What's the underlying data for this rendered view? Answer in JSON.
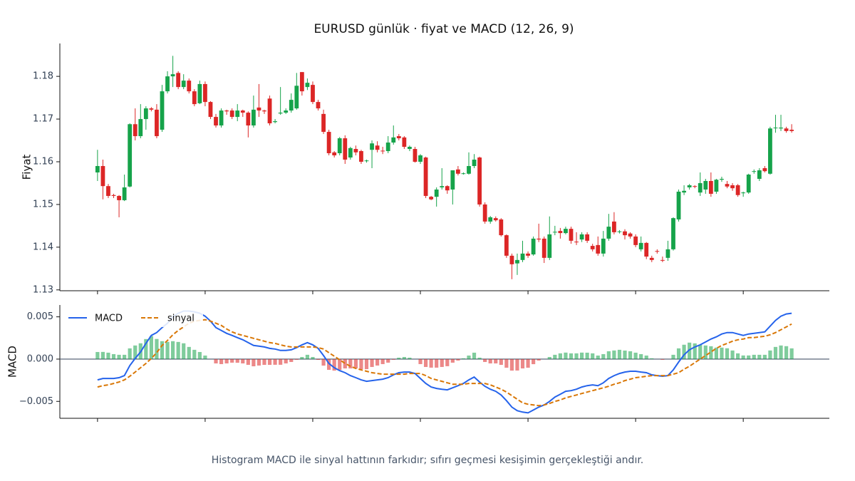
{
  "chart_data": [
    {
      "type": "candlestick",
      "title": "EURUSD günlük · fiyat ve MACD (12, 26, 9)",
      "ylabel": "Fiyat",
      "xlim": [
        -7,
        136
      ],
      "ylim": [
        1.1298,
        1.1877
      ],
      "yticks": [
        1.13,
        1.14,
        1.15,
        1.16,
        1.17,
        1.18
      ],
      "up_color": "#16a34a",
      "down_color": "#dc2626",
      "open": [
        1.1575,
        1.159,
        1.1543,
        1.1522,
        1.152,
        1.151,
        1.1542,
        1.1688,
        1.166,
        1.17,
        1.1725,
        1.1722,
        1.1675,
        1.1765,
        1.18,
        1.1808,
        1.1775,
        1.179,
        1.1765,
        1.1737,
        1.1782,
        1.174,
        1.1705,
        1.1685,
        1.172,
        1.172,
        1.1705,
        1.172,
        1.1715,
        1.1685,
        1.1727,
        1.172,
        1.1748,
        1.1693,
        1.1713,
        1.1715,
        1.172,
        1.1725,
        1.181,
        1.1775,
        1.178,
        1.174,
        1.1712,
        1.167,
        1.1622,
        1.162,
        1.1655,
        1.161,
        1.163,
        1.1625,
        1.1602,
        1.1628,
        1.1638,
        1.1626,
        1.1625,
        1.1645,
        1.166,
        1.1657,
        1.163,
        1.163,
        1.16,
        1.161,
        1.1518,
        1.1518,
        1.154,
        1.1543,
        1.1535,
        1.1582,
        1.1572,
        1.1572,
        1.159,
        1.161,
        1.15,
        1.146,
        1.1468,
        1.1465,
        1.1428,
        1.138,
        1.1362,
        1.137,
        1.1385,
        1.1383,
        1.142,
        1.142,
        1.1375,
        1.1435,
        1.1438,
        1.1433,
        1.1443,
        1.1413,
        1.1418,
        1.143,
        1.1403,
        1.1405,
        1.1385,
        1.142,
        1.146,
        1.1436,
        1.1437,
        1.1432,
        1.1425,
        1.1395,
        1.141,
        1.1375,
        1.1391,
        1.137,
        1.1375,
        1.1395,
        1.1465,
        1.1528,
        1.154,
        1.1543,
        1.1528,
        1.1535,
        1.1555,
        1.153,
        1.1558,
        1.1548,
        1.1545,
        1.1545,
        1.1527,
        1.1528,
        1.1577,
        1.156,
        1.1585,
        1.1572,
        1.1679,
        1.1678,
        1.1678,
        1.1675
      ],
      "high": [
        1.1628,
        1.1605,
        1.1548,
        1.1525,
        1.1522,
        1.157,
        1.169,
        1.1725,
        1.1735,
        1.173,
        1.1728,
        1.1735,
        1.178,
        1.1812,
        1.1848,
        1.1812,
        1.1805,
        1.1795,
        1.177,
        1.179,
        1.1788,
        1.1742,
        1.1712,
        1.1725,
        1.1722,
        1.1725,
        1.1735,
        1.1722,
        1.1718,
        1.1755,
        1.1782,
        1.1722,
        1.1755,
        1.17,
        1.1775,
        1.1725,
        1.176,
        1.1808,
        1.181,
        1.1795,
        1.1788,
        1.1745,
        1.1722,
        1.1675,
        1.1625,
        1.1658,
        1.1662,
        1.1635,
        1.1638,
        1.1628,
        1.1605,
        1.165,
        1.1648,
        1.1635,
        1.166,
        1.1685,
        1.1665,
        1.166,
        1.1638,
        1.1635,
        1.1618,
        1.1612,
        1.152,
        1.154,
        1.1585,
        1.1545,
        1.158,
        1.159,
        1.1575,
        1.1622,
        1.1618,
        1.1612,
        1.1505,
        1.1473,
        1.1472,
        1.1468,
        1.143,
        1.1385,
        1.1385,
        1.1415,
        1.139,
        1.1425,
        1.1455,
        1.1425,
        1.1472,
        1.145,
        1.1445,
        1.1448,
        1.1448,
        1.1435,
        1.1435,
        1.1435,
        1.1408,
        1.1425,
        1.1438,
        1.1478,
        1.1482,
        1.144,
        1.1442,
        1.1435,
        1.143,
        1.1425,
        1.1412,
        1.138,
        1.1395,
        1.1378,
        1.1415,
        1.147,
        1.1535,
        1.1545,
        1.1548,
        1.1545,
        1.1575,
        1.156,
        1.1575,
        1.156,
        1.1565,
        1.1555,
        1.155,
        1.1548,
        1.153,
        1.1572,
        1.1582,
        1.1585,
        1.159,
        1.1682,
        1.171,
        1.171,
        1.1682,
        1.1688
      ],
      "low": [
        1.1555,
        1.1512,
        1.1515,
        1.1515,
        1.147,
        1.1508,
        1.154,
        1.165,
        1.1655,
        1.1675,
        1.1718,
        1.1655,
        1.167,
        1.176,
        1.1775,
        1.177,
        1.177,
        1.176,
        1.173,
        1.1735,
        1.173,
        1.17,
        1.168,
        1.168,
        1.171,
        1.17,
        1.1695,
        1.1705,
        1.1657,
        1.168,
        1.1705,
        1.1712,
        1.1685,
        1.169,
        1.171,
        1.1712,
        1.1715,
        1.1722,
        1.1755,
        1.1768,
        1.1735,
        1.172,
        1.1665,
        1.1615,
        1.161,
        1.1615,
        1.1595,
        1.1605,
        1.1615,
        1.1595,
        1.1598,
        1.1585,
        1.1622,
        1.1618,
        1.162,
        1.164,
        1.165,
        1.163,
        1.1625,
        1.1598,
        1.1595,
        1.1515,
        1.151,
        1.1495,
        1.1535,
        1.1525,
        1.15,
        1.1568,
        1.157,
        1.157,
        1.1585,
        1.1495,
        1.1455,
        1.1455,
        1.146,
        1.1425,
        1.1375,
        1.1325,
        1.1335,
        1.1365,
        1.1375,
        1.138,
        1.1412,
        1.1363,
        1.137,
        1.1428,
        1.142,
        1.143,
        1.1408,
        1.1405,
        1.1412,
        1.141,
        1.139,
        1.138,
        1.1378,
        1.1415,
        1.143,
        1.1432,
        1.1418,
        1.142,
        1.14,
        1.139,
        1.1372,
        1.1365,
        1.1385,
        1.1365,
        1.1368,
        1.1392,
        1.146,
        1.1522,
        1.1535,
        1.1538,
        1.152,
        1.1525,
        1.1518,
        1.1525,
        1.1553,
        1.1538,
        1.1532,
        1.1518,
        1.1518,
        1.1525,
        1.1572,
        1.1555,
        1.1575,
        1.157,
        1.1668,
        1.1672,
        1.1668,
        1.1668
      ],
      "close": [
        1.159,
        1.1543,
        1.152,
        1.152,
        1.151,
        1.154,
        1.1688,
        1.166,
        1.17,
        1.1725,
        1.1722,
        1.166,
        1.1765,
        1.18,
        1.1805,
        1.1775,
        1.179,
        1.1765,
        1.1735,
        1.1782,
        1.174,
        1.1705,
        1.1685,
        1.172,
        1.1718,
        1.1705,
        1.172,
        1.1715,
        1.1685,
        1.1722,
        1.172,
        1.1718,
        1.169,
        1.1695,
        1.1715,
        1.172,
        1.1745,
        1.1778,
        1.1765,
        1.1785,
        1.174,
        1.1725,
        1.167,
        1.162,
        1.1615,
        1.1655,
        1.1605,
        1.1632,
        1.1622,
        1.16,
        1.1603,
        1.1643,
        1.1628,
        1.1625,
        1.1645,
        1.1657,
        1.1655,
        1.1635,
        1.1635,
        1.16,
        1.1615,
        1.152,
        1.1512,
        1.1535,
        1.1543,
        1.1533,
        1.158,
        1.1572,
        1.1573,
        1.159,
        1.1605,
        1.15,
        1.146,
        1.147,
        1.1463,
        1.1428,
        1.138,
        1.136,
        1.137,
        1.1385,
        1.138,
        1.142,
        1.1418,
        1.1375,
        1.143,
        1.1436,
        1.1433,
        1.1443,
        1.1415,
        1.1412,
        1.143,
        1.1415,
        1.1395,
        1.1385,
        1.142,
        1.1448,
        1.1435,
        1.1437,
        1.1428,
        1.1425,
        1.1405,
        1.141,
        1.1378,
        1.137,
        1.139,
        1.1369,
        1.1395,
        1.1468,
        1.153,
        1.1532,
        1.1545,
        1.1542,
        1.155,
        1.1555,
        1.1525,
        1.1558,
        1.156,
        1.1542,
        1.1538,
        1.1522,
        1.1528,
        1.157,
        1.1578,
        1.158,
        1.1578,
        1.1678,
        1.168,
        1.168,
        1.1672,
        1.1672
      ]
    },
    {
      "type": "macd",
      "ylabel": "MACD",
      "xlim": [
        -7,
        136
      ],
      "ylim": [
        -0.007,
        0.0064
      ],
      "yticks": [
        {
          "value": -0.005,
          "label": "−0.005"
        },
        {
          "value": 0,
          "label": "0.000"
        },
        {
          "value": 0.005,
          "label": "0.005"
        }
      ],
      "legend": "upper left",
      "histogram": {
        "up_color": "#16a34a",
        "down_color": "#dc2626",
        "values": [
          0.00084,
          0.00085,
          0.00076,
          0.00059,
          0.00051,
          0.00051,
          0.00127,
          0.00161,
          0.00187,
          0.00237,
          0.00272,
          0.00238,
          0.00212,
          0.00204,
          0.00212,
          0.00203,
          0.00187,
          0.00144,
          0.0011,
          0.00084,
          0.00042,
          0,
          -0.00051,
          -0.00059,
          -0.00051,
          -0.00042,
          -0.00043,
          -0.00051,
          -0.00068,
          -0.00085,
          -0.00076,
          -0.00068,
          -0.00068,
          -0.00067,
          -0.00067,
          -0.00051,
          -0.00034,
          -8e-05,
          0.00025,
          0.00051,
          0.00025,
          -9e-05,
          -0.00077,
          -0.00127,
          -0.00136,
          -0.00128,
          -0.0011,
          -0.0011,
          -0.0011,
          -0.00119,
          -0.00119,
          -0.00093,
          -0.00076,
          -0.00059,
          -0.00042,
          -8e-05,
          0.00017,
          0.00025,
          0.00017,
          0,
          -0.00059,
          -0.00093,
          -0.00101,
          -0.00101,
          -0.00093,
          -0.00084,
          -0.00042,
          -0.00017,
          9e-05,
          0.00042,
          0.00076,
          0.00017,
          -0.00034,
          -0.00051,
          -0.00051,
          -0.00068,
          -0.00102,
          -0.00136,
          -0.00135,
          -0.0011,
          -0.00102,
          -0.0006,
          -0.00017,
          0,
          0.00025,
          0.00051,
          0.00068,
          0.00077,
          0.00068,
          0.00068,
          0.00077,
          0.00076,
          0.00068,
          0.00042,
          0.00059,
          0.00093,
          0.00102,
          0.0011,
          0.00101,
          0.00093,
          0.00076,
          0.00059,
          0.00042,
          9e-05,
          0,
          -8e-05,
          0,
          0.00051,
          0.00127,
          0.0017,
          0.00195,
          0.00186,
          0.00169,
          0.00161,
          0.00152,
          0.00136,
          0.00136,
          0.00128,
          0.00102,
          0.00068,
          0.00043,
          0.00043,
          0.00051,
          0.00051,
          0.00051,
          0.00102,
          0.00144,
          0.00161,
          0.00153,
          0.00127
        ]
      },
      "series": [
        {
          "name": "MACD",
          "color": "#2563eb",
          "dashed": false,
          "values": [
            -0.00246,
            -0.00229,
            -0.00229,
            -0.00229,
            -0.0022,
            -0.00195,
            -0.00076,
            8e-05,
            0.00085,
            0.00186,
            0.0028,
            0.00314,
            0.00373,
            0.00424,
            0.005,
            0.00542,
            0.00568,
            0.00568,
            0.00559,
            0.00542,
            0.00508,
            0.00449,
            0.00373,
            0.00339,
            0.00305,
            0.0028,
            0.00254,
            0.00229,
            0.00195,
            0.00161,
            0.00153,
            0.00144,
            0.00127,
            0.00119,
            0.00102,
            0.00102,
            0.0011,
            0.00136,
            0.00169,
            0.00195,
            0.00169,
            0.00127,
            0.00042,
            -0.00051,
            -0.00102,
            -0.00136,
            -0.00161,
            -0.00195,
            -0.0022,
            -0.00246,
            -0.00263,
            -0.00254,
            -0.00246,
            -0.00237,
            -0.0022,
            -0.00186,
            -0.00161,
            -0.00153,
            -0.00153,
            -0.0017,
            -0.00229,
            -0.00288,
            -0.0033,
            -0.00347,
            -0.00356,
            -0.00364,
            -0.00339,
            -0.00314,
            -0.00288,
            -0.00246,
            -0.00212,
            -0.00271,
            -0.00322,
            -0.00356,
            -0.00381,
            -0.00424,
            -0.00492,
            -0.00568,
            -0.0061,
            -0.00627,
            -0.00636,
            -0.00602,
            -0.00568,
            -0.00542,
            -0.005,
            -0.00449,
            -0.00415,
            -0.00381,
            -0.00373,
            -0.00356,
            -0.0033,
            -0.00314,
            -0.00305,
            -0.00314,
            -0.0028,
            -0.00229,
            -0.00195,
            -0.0017,
            -0.00153,
            -0.00144,
            -0.00144,
            -0.00153,
            -0.00161,
            -0.00186,
            -0.00195,
            -0.00203,
            -0.00195,
            -0.00127,
            -0.00034,
            0.00051,
            0.0011,
            0.00144,
            0.00169,
            0.00203,
            0.00237,
            0.00263,
            0.00297,
            0.00314,
            0.00314,
            0.00297,
            0.0028,
            0.00297,
            0.00305,
            0.00314,
            0.00322,
            0.0039,
            0.00458,
            0.00508,
            0.00534,
            0.00542
          ]
        },
        {
          "name": "sinyal",
          "color": "#d97706",
          "dashed": true,
          "values": [
            -0.0033,
            -0.00314,
            -0.00305,
            -0.00288,
            -0.00271,
            -0.00246,
            -0.00203,
            -0.00153,
            -0.00102,
            -0.00051,
            8e-05,
            0.00076,
            0.00161,
            0.0022,
            0.00288,
            0.00339,
            0.00381,
            0.00424,
            0.00449,
            0.00458,
            0.00466,
            0.00449,
            0.00424,
            0.00398,
            0.00356,
            0.00322,
            0.00297,
            0.0028,
            0.00263,
            0.00246,
            0.00229,
            0.00212,
            0.00195,
            0.00186,
            0.00169,
            0.00153,
            0.00144,
            0.00144,
            0.00144,
            0.00144,
            0.00144,
            0.00136,
            0.00119,
            0.00076,
            0.00034,
            -8e-05,
            -0.00051,
            -0.00085,
            -0.0011,
            -0.00127,
            -0.00144,
            -0.00161,
            -0.0017,
            -0.00178,
            -0.00178,
            -0.00178,
            -0.00178,
            -0.00178,
            -0.0017,
            -0.0017,
            -0.0017,
            -0.00195,
            -0.00229,
            -0.00246,
            -0.00263,
            -0.0028,
            -0.00297,
            -0.00297,
            -0.00297,
            -0.00288,
            -0.00288,
            -0.00288,
            -0.00288,
            -0.00305,
            -0.0033,
            -0.00356,
            -0.0039,
            -0.00432,
            -0.00475,
            -0.00517,
            -0.00534,
            -0.00542,
            -0.00551,
            -0.00542,
            -0.00525,
            -0.005,
            -0.00483,
            -0.00458,
            -0.00441,
            -0.00424,
            -0.00407,
            -0.0039,
            -0.00373,
            -0.00356,
            -0.00339,
            -0.00322,
            -0.00297,
            -0.0028,
            -0.00254,
            -0.00237,
            -0.0022,
            -0.00212,
            -0.00203,
            -0.00195,
            -0.00195,
            -0.00195,
            -0.00195,
            -0.00178,
            -0.00161,
            -0.00119,
            -0.00085,
            -0.00042,
            0,
            0.00042,
            0.00085,
            0.00127,
            0.00161,
            0.00186,
            0.00212,
            0.00229,
            0.00237,
            0.00254,
            0.00254,
            0.00263,
            0.00271,
            0.00288,
            0.00314,
            0.00347,
            0.00381,
            0.00415
          ]
        }
      ]
    }
  ],
  "caption": "Histogram MACD ile sinyal hattının farkıdır; sıfırı geçmesi kesişimin gerçekleştiği andır."
}
